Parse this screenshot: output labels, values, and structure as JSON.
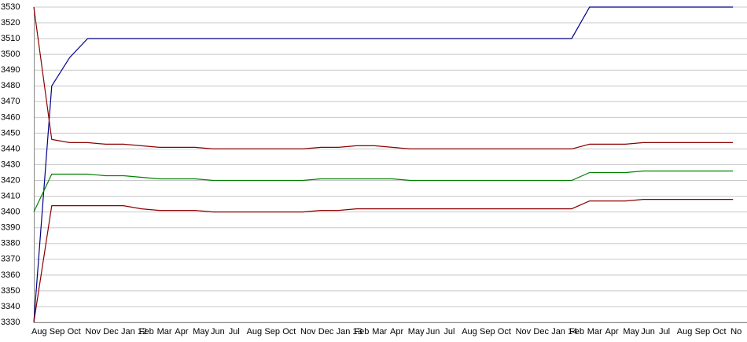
{
  "chart_data": {
    "type": "line",
    "categories": [
      "Aug",
      "Sep",
      "Oct",
      "Nov",
      "Dec",
      "Jan 12",
      "Feb",
      "Mar",
      "Apr",
      "May",
      "Jun",
      "Jul",
      "Aug",
      "Sep",
      "Oct",
      "Nov",
      "Dec",
      "Jan 13",
      "Feb",
      "Mar",
      "Apr",
      "May",
      "Jun",
      "Jul",
      "Aug",
      "Sep",
      "Oct",
      "Nov",
      "Dec",
      "Jan 14",
      "Feb",
      "Mar",
      "Apr",
      "May",
      "Jun",
      "Jul",
      "Aug",
      "Sep",
      "Oct",
      "No"
    ],
    "series": [
      {
        "color": "#00008b",
        "values": [
          3330,
          3480,
          3498,
          3510,
          3510,
          3510,
          3510,
          3510,
          3510,
          3510,
          3510,
          3510,
          3510,
          3510,
          3510,
          3510,
          3510,
          3510,
          3510,
          3510,
          3510,
          3510,
          3510,
          3510,
          3510,
          3510,
          3510,
          3510,
          3510,
          3510,
          3510,
          3530,
          3530,
          3530,
          3530,
          3530,
          3530,
          3530,
          3530,
          3530
        ]
      },
      {
        "color": "#8b0000",
        "values": [
          3530,
          3446,
          3444,
          3444,
          3443,
          3443,
          3442,
          3441,
          3441,
          3441,
          3440,
          3440,
          3440,
          3440,
          3440,
          3440,
          3441,
          3441,
          3442,
          3442,
          3441,
          3440,
          3440,
          3440,
          3440,
          3440,
          3440,
          3440,
          3440,
          3440,
          3440,
          3443,
          3443,
          3443,
          3444,
          3444,
          3444,
          3444,
          3444,
          3444
        ]
      },
      {
        "color": "#008000",
        "values": [
          3400,
          3424,
          3424,
          3424,
          3423,
          3423,
          3422,
          3421,
          3421,
          3421,
          3420,
          3420,
          3420,
          3420,
          3420,
          3420,
          3421,
          3421,
          3421,
          3421,
          3421,
          3420,
          3420,
          3420,
          3420,
          3420,
          3420,
          3420,
          3420,
          3420,
          3420,
          3425,
          3425,
          3425,
          3426,
          3426,
          3426,
          3426,
          3426,
          3426
        ]
      },
      {
        "color": "#8b0000",
        "values": [
          3330,
          3404,
          3404,
          3404,
          3404,
          3404,
          3402,
          3401,
          3401,
          3401,
          3400,
          3400,
          3400,
          3400,
          3400,
          3400,
          3401,
          3401,
          3402,
          3402,
          3402,
          3402,
          3402,
          3402,
          3402,
          3402,
          3402,
          3402,
          3402,
          3402,
          3402,
          3407,
          3407,
          3407,
          3408,
          3408,
          3408,
          3408,
          3408,
          3408
        ]
      }
    ],
    "ylim": [
      3330,
      3530
    ],
    "yticks": [
      3330,
      3340,
      3350,
      3360,
      3370,
      3380,
      3390,
      3400,
      3410,
      3420,
      3430,
      3440,
      3450,
      3460,
      3470,
      3480,
      3490,
      3500,
      3510,
      3520,
      3530
    ],
    "grid": true
  }
}
